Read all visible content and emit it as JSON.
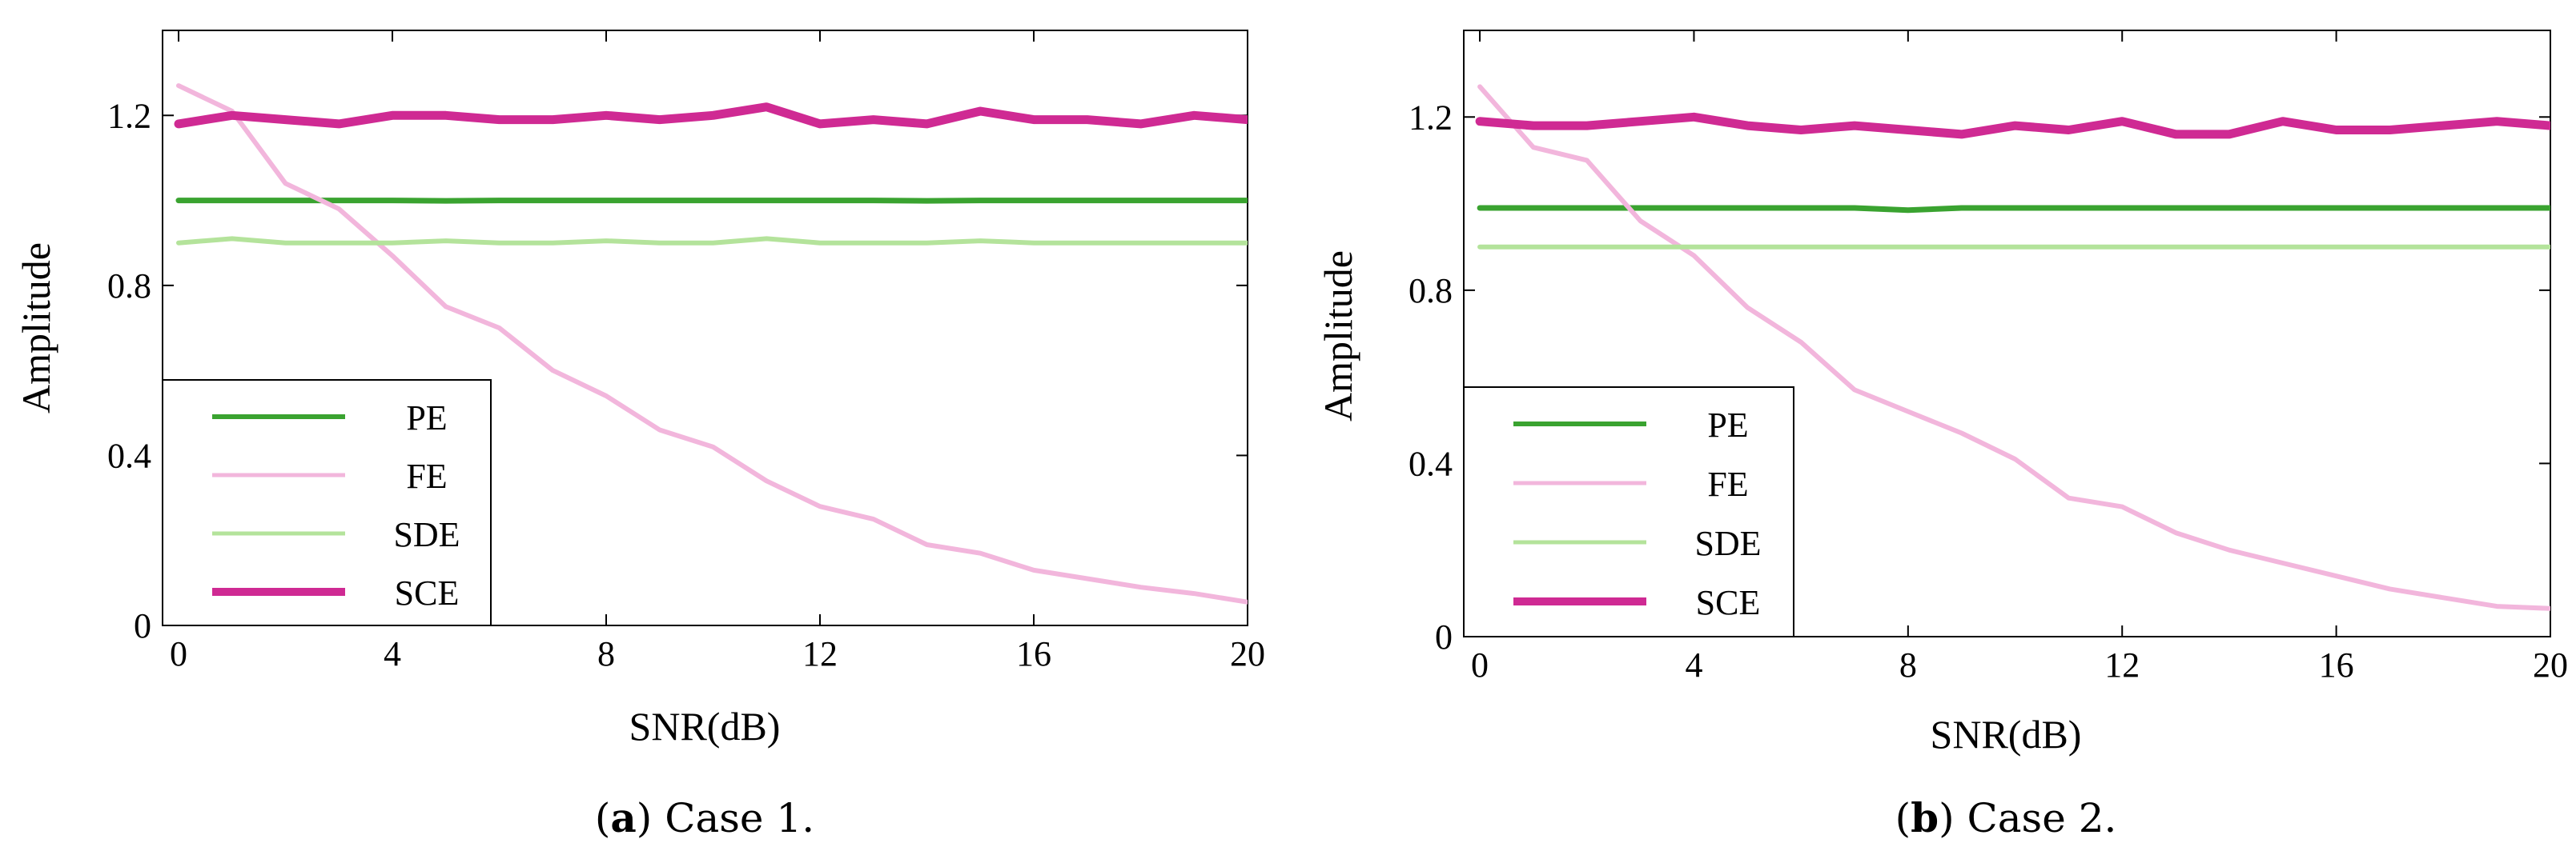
{
  "chart_data": [
    {
      "type": "line",
      "caption_letter": "a",
      "caption_text": "Case 1.",
      "xlabel": "SNR(dB)",
      "ylabel": "Amplitude",
      "xlim": [
        -0.3,
        20
      ],
      "ylim": [
        0,
        1.4
      ],
      "xticks": [
        0,
        4,
        8,
        12,
        16,
        20
      ],
      "xtick_labels": [
        "0",
        "4",
        "8",
        "12",
        "16",
        "20"
      ],
      "yticks": [
        0,
        0.4,
        0.8,
        1.2
      ],
      "ytick_labels": [
        "0",
        "0.4",
        "0.8",
        "1.2"
      ],
      "legend_position": "lower-left",
      "x": [
        0,
        1,
        2,
        3,
        4,
        5,
        6,
        7,
        8,
        9,
        10,
        11,
        12,
        13,
        14,
        15,
        16,
        17,
        18,
        19,
        20
      ],
      "series": [
        {
          "name": "PE",
          "color": "#3aa330",
          "values": [
            1.0,
            1.0,
            1.0,
            1.0,
            1.0,
            0.999,
            1.0,
            1.0,
            1.0,
            1.0,
            1.0,
            1.0,
            1.0,
            1.0,
            0.999,
            1.0,
            1.0,
            1.0,
            1.0,
            1.0,
            1.0
          ]
        },
        {
          "name": "FE",
          "color": "#f2b6dc",
          "values": [
            1.27,
            1.21,
            1.04,
            0.98,
            0.87,
            0.75,
            0.7,
            0.6,
            0.54,
            0.46,
            0.42,
            0.34,
            0.28,
            0.25,
            0.19,
            0.17,
            0.13,
            0.11,
            0.09,
            0.075,
            0.055
          ]
        },
        {
          "name": "SDE",
          "color": "#b4e39b",
          "values": [
            0.9,
            0.91,
            0.9,
            0.9,
            0.9,
            0.905,
            0.9,
            0.9,
            0.905,
            0.9,
            0.9,
            0.91,
            0.9,
            0.9,
            0.9,
            0.905,
            0.9,
            0.9,
            0.9,
            0.9,
            0.9
          ]
        },
        {
          "name": "SCE",
          "color": "#cf2a93",
          "values": [
            1.18,
            1.2,
            1.19,
            1.18,
            1.2,
            1.2,
            1.19,
            1.19,
            1.2,
            1.19,
            1.2,
            1.22,
            1.18,
            1.19,
            1.18,
            1.21,
            1.19,
            1.19,
            1.18,
            1.2,
            1.19
          ]
        }
      ]
    },
    {
      "type": "line",
      "caption_letter": "b",
      "caption_text": "Case 2.",
      "xlabel": "SNR(dB)",
      "ylabel": "Amplitude",
      "xlim": [
        -0.3,
        20
      ],
      "ylim": [
        0,
        1.4
      ],
      "xticks": [
        0,
        4,
        8,
        12,
        16,
        20
      ],
      "xtick_labels": [
        "0",
        "4",
        "8",
        "12",
        "16",
        "20"
      ],
      "yticks": [
        0,
        0.4,
        0.8,
        1.2
      ],
      "ytick_labels": [
        "0",
        "0.4",
        "0.8",
        "1.2"
      ],
      "legend_position": "lower-left",
      "x": [
        0,
        1,
        2,
        3,
        4,
        5,
        6,
        7,
        8,
        9,
        10,
        11,
        12,
        13,
        14,
        15,
        16,
        17,
        18,
        19,
        20
      ],
      "series": [
        {
          "name": "PE",
          "color": "#3aa330",
          "values": [
            0.99,
            0.99,
            0.99,
            0.99,
            0.99,
            0.99,
            0.99,
            0.99,
            0.985,
            0.99,
            0.99,
            0.99,
            0.99,
            0.99,
            0.99,
            0.99,
            0.99,
            0.99,
            0.99,
            0.99,
            0.99
          ]
        },
        {
          "name": "FE",
          "color": "#f2b6dc",
          "values": [
            1.27,
            1.13,
            1.1,
            0.96,
            0.88,
            0.76,
            0.68,
            0.57,
            0.52,
            0.47,
            0.41,
            0.32,
            0.3,
            0.24,
            0.2,
            0.17,
            0.14,
            0.11,
            0.09,
            0.07,
            0.065
          ]
        },
        {
          "name": "SDE",
          "color": "#b4e39b",
          "values": [
            0.9,
            0.9,
            0.9,
            0.9,
            0.9,
            0.9,
            0.9,
            0.9,
            0.9,
            0.9,
            0.9,
            0.9,
            0.9,
            0.9,
            0.9,
            0.9,
            0.9,
            0.9,
            0.9,
            0.9,
            0.9
          ]
        },
        {
          "name": "SCE",
          "color": "#cf2a93",
          "values": [
            1.19,
            1.18,
            1.18,
            1.19,
            1.2,
            1.18,
            1.17,
            1.18,
            1.17,
            1.16,
            1.18,
            1.17,
            1.19,
            1.16,
            1.16,
            1.19,
            1.17,
            1.17,
            1.18,
            1.19,
            1.18
          ]
        }
      ]
    }
  ]
}
